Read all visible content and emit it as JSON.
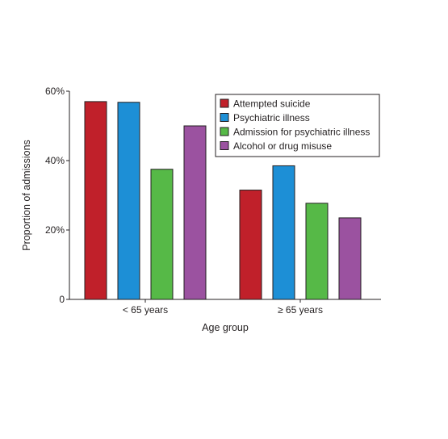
{
  "chart_data": {
    "type": "bar",
    "categories": [
      "< 65 years",
      "≥ 65 years"
    ],
    "series": [
      {
        "name": "Attempted suicide",
        "color": "#c0202a",
        "values": [
          57,
          31.5
        ]
      },
      {
        "name": "Psychiatric illness",
        "color": "#1d8fd6",
        "values": [
          56.8,
          38.5
        ]
      },
      {
        "name": "Admission for psychiatric illness",
        "color": "#56b947",
        "values": [
          37.5,
          27.7
        ]
      },
      {
        "name": "Alcohol or drug misuse",
        "color": "#9b52a0",
        "values": [
          50,
          23.5
        ]
      }
    ],
    "xlabel": "Age group",
    "ylabel": "Proportion of admissions",
    "ylim": [
      0,
      60
    ],
    "yticks": [
      0,
      20,
      40,
      60
    ],
    "ytick_labels": [
      "0",
      "20%",
      "40%",
      "60%"
    ],
    "grid": false,
    "legend_position": "top-right"
  }
}
